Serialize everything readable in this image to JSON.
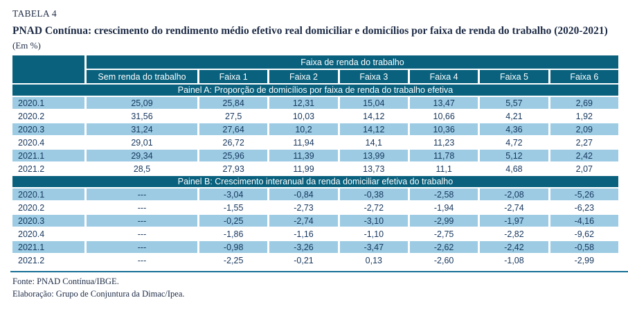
{
  "header": {
    "label": "TABELA 4",
    "title": "PNAD Contínua: crescimento do rendimento médio efetivo real domiciliar e domicílios por faixa de renda do trabalho (2020-2021)",
    "unit_note": "(Em %)"
  },
  "table": {
    "group_header": "Faixa de renda do trabalho",
    "columns": [
      "Sem renda do trabalho",
      "Faixa 1",
      "Faixa 2",
      "Faixa 3",
      "Faixa 4",
      "Faixa 5",
      "Faixa 6"
    ],
    "panels": [
      {
        "title": "Painel A: Proporção de domicílios por faixa de renda do trabalho efetiva",
        "rows": [
          {
            "label": "2020.1",
            "values": [
              "25,09",
              "25,84",
              "12,31",
              "15,04",
              "13,47",
              "5,57",
              "2,69"
            ]
          },
          {
            "label": "2020.2",
            "values": [
              "31,56",
              "27,5",
              "10,03",
              "14,12",
              "10,66",
              "4,21",
              "1,92"
            ]
          },
          {
            "label": "2020.3",
            "values": [
              "31,24",
              "27,64",
              "10,2",
              "14,12",
              "10,36",
              "4,36",
              "2,09"
            ]
          },
          {
            "label": "2020.4",
            "values": [
              "29,01",
              "26,72",
              "11,94",
              "14,1",
              "11,23",
              "4,72",
              "2,27"
            ]
          },
          {
            "label": "2021.1",
            "values": [
              "29,34",
              "25,96",
              "11,39",
              "13,99",
              "11,78",
              "5,12",
              "2,42"
            ]
          },
          {
            "label": "2021.2",
            "values": [
              "28,5",
              "27,93",
              "11,99",
              "13,73",
              "11,1",
              "4,68",
              "2,07"
            ]
          }
        ]
      },
      {
        "title": "Painel B: Crescimento interanual da renda domiciliar efetiva do trabalho",
        "rows": [
          {
            "label": "2020.1",
            "values": [
              "---",
              "-3,04",
              "-0,84",
              "-0,38",
              "-2,58",
              "-2,08",
              "-5,26"
            ]
          },
          {
            "label": "2020.2",
            "values": [
              "---",
              "-1,55",
              "-2,73",
              "-2,72",
              "-1,94",
              "-2,74",
              "-6,23"
            ]
          },
          {
            "label": "2020.3",
            "values": [
              "---",
              "-0,25",
              "-2,74",
              "-3,10",
              "-2,99",
              "-1,97",
              "-4,16"
            ]
          },
          {
            "label": "2020.4",
            "values": [
              "---",
              "-1,86",
              "-1,16",
              "-1,10",
              "-2,75",
              "-2,82",
              "-9,62"
            ]
          },
          {
            "label": "2021.1",
            "values": [
              "---",
              "-0,98",
              "-3,26",
              "-3,47",
              "-2,62",
              "-2,42",
              "-0,58"
            ]
          },
          {
            "label": "2021.2",
            "values": [
              "---",
              "-2,25",
              "-0,21",
              "0,13",
              "-2,60",
              "-1,08",
              "-2,99"
            ]
          }
        ]
      }
    ]
  },
  "footer": {
    "source": "Fonte: PNAD Contínua/IBGE.",
    "elaboration": "Elaboração: Grupo de Conjuntura da Dimac/Ipea."
  },
  "colors": {
    "header_teal": "#09617e",
    "stripe_blue": "#9ccbe3",
    "text_navy": "#17375e",
    "rule_teal": "#146e94",
    "title_ink": "#1d2b45"
  }
}
